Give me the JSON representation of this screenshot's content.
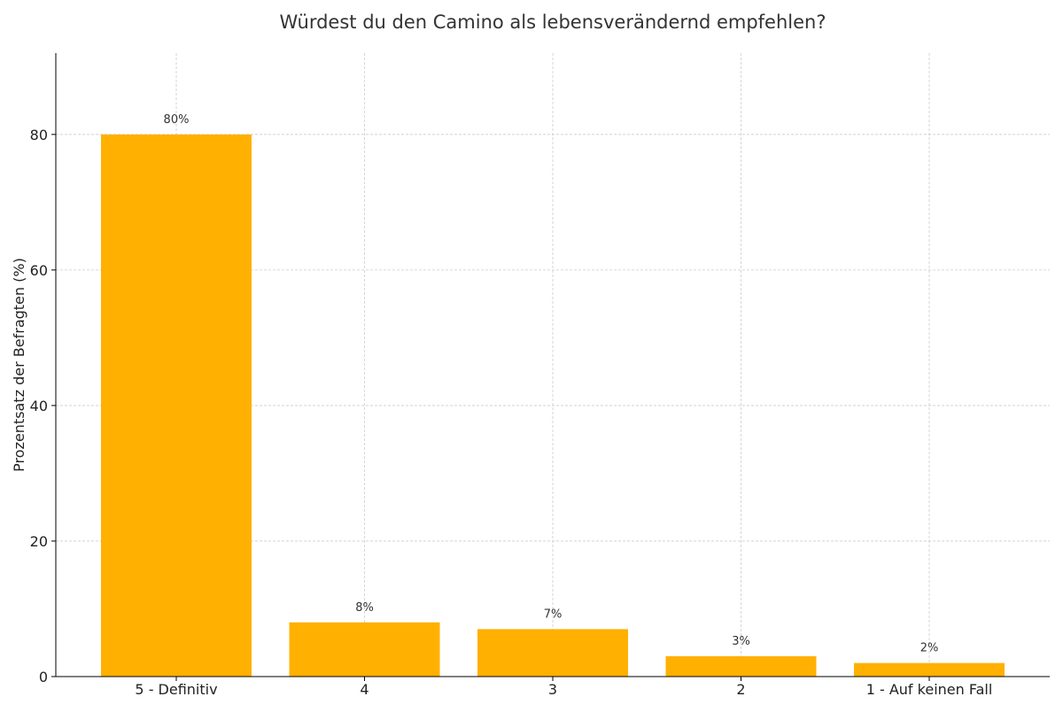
{
  "chart_data": {
    "type": "bar",
    "title": "Würdest du den Camino als lebensverändernd empfehlen?",
    "xlabel": "",
    "ylabel": "Prozentsatz der Befragten (%)",
    "categories": [
      "5 - Definitiv",
      "4",
      "3",
      "2",
      "1 - Auf keinen Fall"
    ],
    "values": [
      80,
      8,
      7,
      3,
      2
    ],
    "value_labels": [
      "80%",
      "8%",
      "7%",
      "3%",
      "2%"
    ],
    "yticks": [
      0,
      20,
      40,
      60,
      80
    ],
    "ylim": [
      0,
      92
    ],
    "grid": true,
    "legend": "none",
    "colors": {
      "bar": "#FFB000",
      "grid": "#cccccc",
      "axis": "#000000",
      "text": "#333333"
    }
  }
}
